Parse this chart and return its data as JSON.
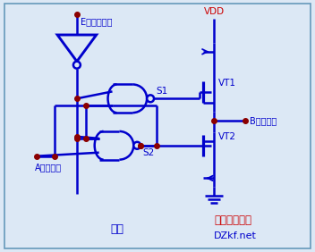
{
  "bg_color": "#dce8f5",
  "line_color": "#0000cc",
  "dot_color": "#8b0000",
  "text_color_blue": "#0000cc",
  "text_color_red": "#cc0000",
  "title": "图一",
  "vdd_label": "VDD",
  "e_label": "E（选通端）",
  "a_label": "A（输入）",
  "b_label": "B（输出）",
  "vt1_label": "VT1",
  "vt2_label": "VT2",
  "s1_label": "S1",
  "s2_label": "S2",
  "watermark1": "电子开发社区",
  "watermark2": "DZkf.net",
  "figsize": [
    3.52,
    2.82
  ],
  "dpi": 100
}
